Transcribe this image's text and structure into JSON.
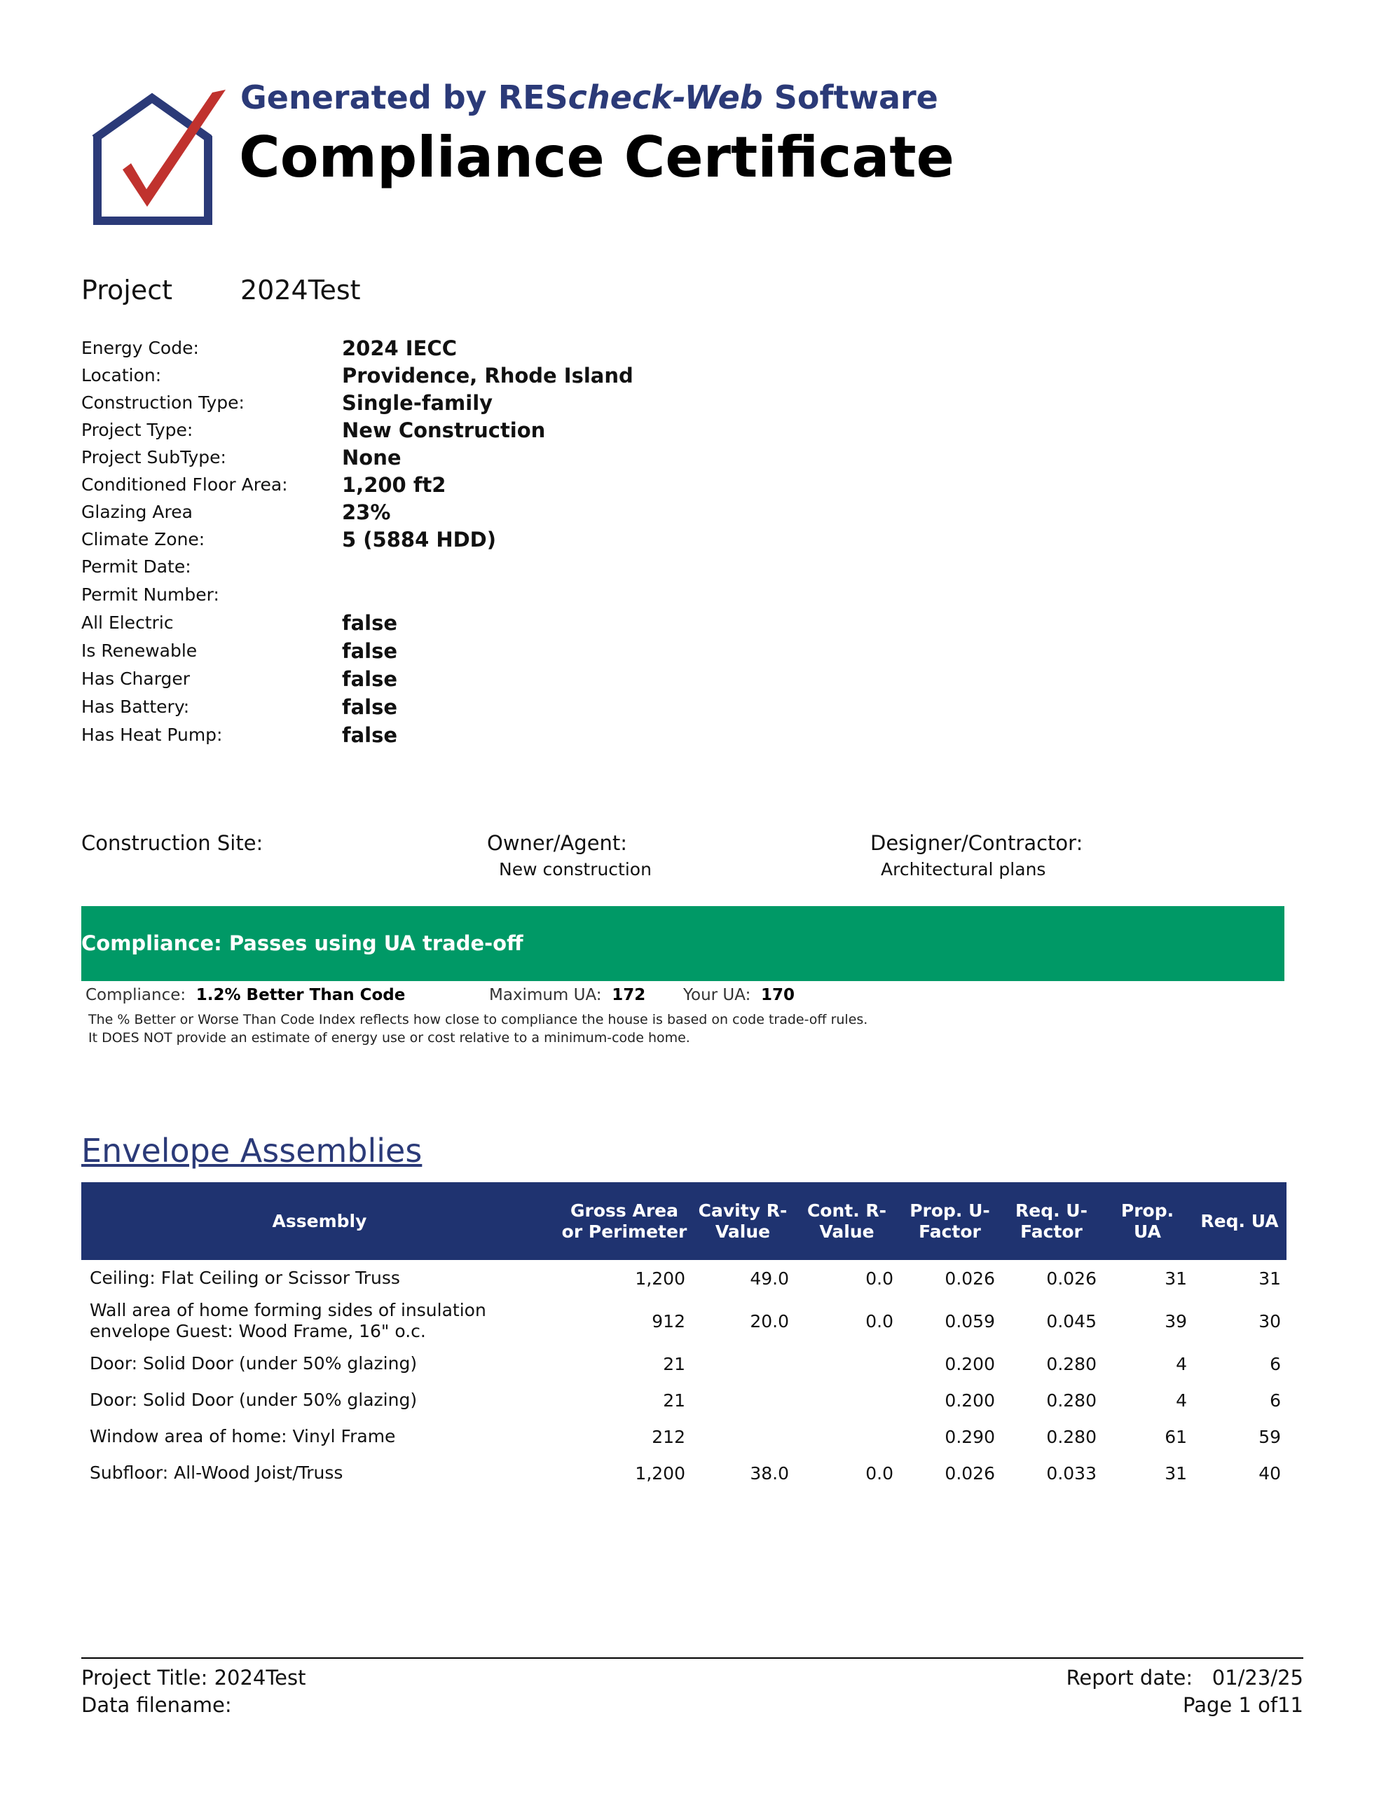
{
  "header": {
    "generated_prefix": "Generated by ",
    "generated_brand_a": "RES",
    "generated_brand_b": "check-Web",
    "generated_suffix": " Software",
    "title": "Compliance Certificate",
    "logo_colors": {
      "house": "#2b3a78",
      "check": "#c0322e"
    }
  },
  "project": {
    "label": "Project",
    "name": "2024Test"
  },
  "info": [
    {
      "k": "Energy Code:",
      "v": "2024 IECC"
    },
    {
      "k": "Location:",
      "v": "Providence, Rhode Island"
    },
    {
      "k": "Construction Type:",
      "v": "Single-family"
    },
    {
      "k": "Project Type:",
      "v": "New Construction"
    },
    {
      "k": "Project SubType:",
      "v": "None"
    },
    {
      "k": "Conditioned Floor Area:",
      "v": "1,200 ft2"
    },
    {
      "k": "Glazing Area",
      "v": "23%"
    },
    {
      "k": "Climate Zone:",
      "v": "5  (5884 HDD)"
    },
    {
      "k": "Permit Date:",
      "v": ""
    },
    {
      "k": "Permit Number:",
      "v": ""
    },
    {
      "k": "All Electric",
      "v": "false"
    },
    {
      "k": "Is Renewable",
      "v": "false"
    },
    {
      "k": "Has Charger",
      "v": "false"
    },
    {
      "k": "Has Battery:",
      "v": "false"
    },
    {
      "k": "Has Heat Pump:",
      "v": "false"
    }
  ],
  "parties": {
    "site_label": "Construction Site:",
    "owner_label": "Owner/Agent:",
    "owner_value": "New construction",
    "designer_label": "Designer/Contractor:",
    "designer_value": "Architectural plans"
  },
  "compliance": {
    "banner": "Compliance: Passes using UA trade-off",
    "banner_color": "#009966",
    "label": "Compliance:",
    "value": "1.2% Better Than Code",
    "max_ua_label": "Maximum UA:",
    "max_ua": "172",
    "your_ua_label": "Your UA:",
    "your_ua": "170",
    "note1": "The % Better or Worse Than Code Index reflects  how close to compliance the house is based on code trade-off rules.",
    "note2": "It DOES NOT provide an estimate of energy use or cost relative to a minimum-code home."
  },
  "envelope": {
    "title": "Envelope Assemblies",
    "headers": [
      "Assembly",
      "Gross Area or Perimeter",
      "Cavity R-Value",
      "Cont. R-Value",
      "Prop. U-Factor",
      "Req. U-Factor",
      "Prop. UA",
      "Req. UA"
    ],
    "rows": [
      [
        "Ceiling: Flat Ceiling or Scissor Truss",
        "1,200",
        "49.0",
        "0.0",
        "0.026",
        "0.026",
        "31",
        "31"
      ],
      [
        "Wall area of home forming sides of insulation envelope Guest: Wood Frame, 16\" o.c.",
        "912",
        "20.0",
        "0.0",
        "0.059",
        "0.045",
        "39",
        "30"
      ],
      [
        "Door: Solid Door (under 50% glazing)",
        "21",
        "",
        "",
        "0.200",
        "0.280",
        "4",
        "6"
      ],
      [
        "Door: Solid Door (under 50% glazing)",
        "21",
        "",
        "",
        "0.200",
        "0.280",
        "4",
        "6"
      ],
      [
        "Window area of home: Vinyl Frame",
        "212",
        "",
        "",
        "0.290",
        "0.280",
        "61",
        "59"
      ],
      [
        "Subfloor: All-Wood Joist/Truss",
        "1,200",
        "38.0",
        "0.0",
        "0.026",
        "0.033",
        "31",
        "40"
      ]
    ]
  },
  "footer": {
    "project_title": "Project Title: 2024Test",
    "data_filename": "Data filename:",
    "report_date_label": "Report date:",
    "report_date": "01/23/25",
    "page": "Page 1 of11"
  }
}
